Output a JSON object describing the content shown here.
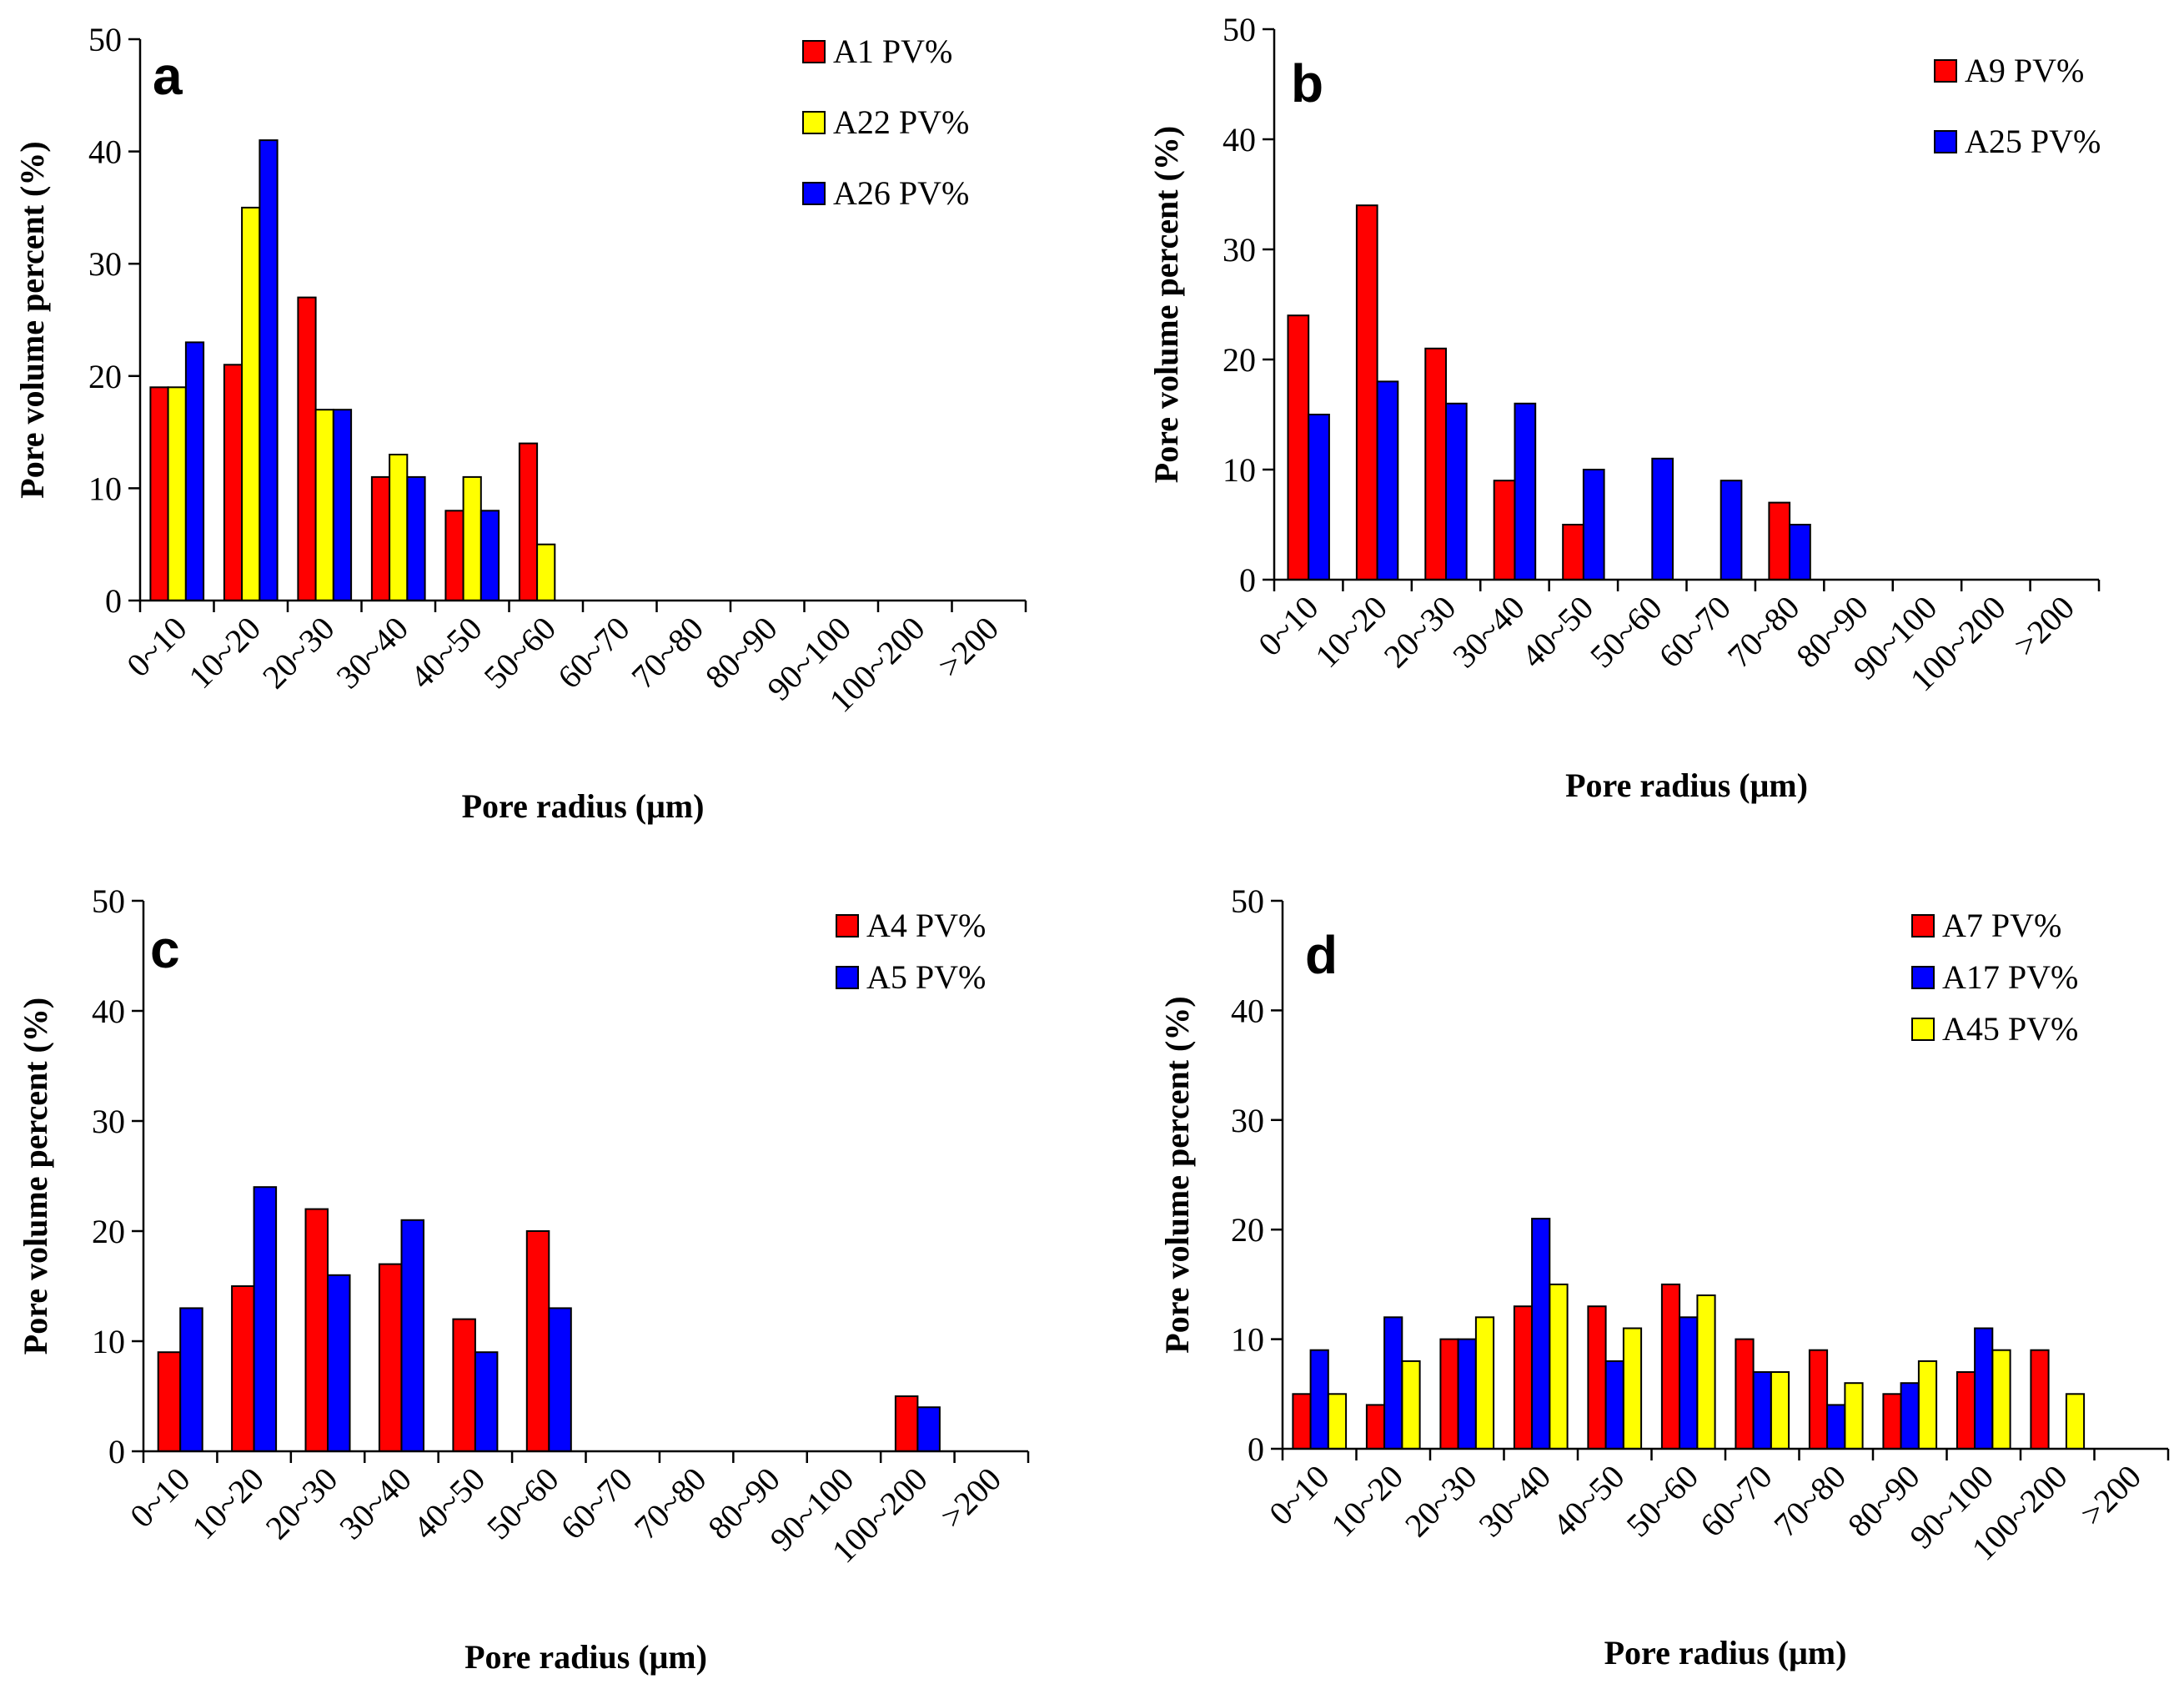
{
  "figure": {
    "description": "Pore volume percent distributions by pore radius"
  },
  "colors": {
    "red": "#ff0000",
    "yellow": "#ffff00",
    "blue": "#0000ff",
    "axis": "#000000"
  },
  "chart_data": [
    {
      "type": "bar",
      "panel": "a",
      "ylabel": "Pore volume percent (%)",
      "xlabel": "Pore radius  (μm)",
      "ylim": [
        0,
        50
      ],
      "yticks": [
        "0",
        "10",
        "20",
        "30",
        "40",
        "50"
      ],
      "categories": [
        "0~10",
        "10~20",
        "20~30",
        "30~40",
        "40~50",
        "50~60",
        "60~70",
        "70~80",
        "80~90",
        "90~100",
        "100~200",
        ">200"
      ],
      "series": [
        {
          "name": "A1 PV%",
          "color": "#ff0000",
          "values": [
            19,
            21,
            27,
            11,
            8,
            14,
            0,
            0,
            0,
            0,
            0,
            0
          ]
        },
        {
          "name": "A22 PV%",
          "color": "#ffff00",
          "values": [
            19,
            35,
            17,
            13,
            11,
            5,
            0,
            0,
            0,
            0,
            0,
            0
          ]
        },
        {
          "name": "A26 PV%",
          "color": "#0000ff",
          "values": [
            23,
            41,
            17,
            11,
            8,
            0,
            0,
            0,
            0,
            0,
            0,
            0
          ]
        }
      ],
      "legend": "top-right"
    },
    {
      "type": "bar",
      "panel": "b",
      "ylabel": "Pore volume percent (%)",
      "xlabel": "Pore radius  (μm)",
      "ylim": [
        0,
        50
      ],
      "yticks": [
        "0",
        "10",
        "20",
        "30",
        "40",
        "50"
      ],
      "categories": [
        "0~10",
        "10~20",
        "20~30",
        "30~40",
        "40~50",
        "50~60",
        "60~70",
        "70~80",
        "80~90",
        "90~100",
        "100~200",
        ">200"
      ],
      "series": [
        {
          "name": "A9 PV%",
          "color": "#ff0000",
          "values": [
            24,
            34,
            21,
            9,
            5,
            0,
            0,
            7,
            0,
            0,
            0,
            0
          ]
        },
        {
          "name": "A25 PV%",
          "color": "#0000ff",
          "values": [
            15,
            18,
            16,
            16,
            10,
            11,
            9,
            5,
            0,
            0,
            0,
            0
          ]
        }
      ],
      "legend": "top-right"
    },
    {
      "type": "bar",
      "panel": "c",
      "ylabel": "Pore volume percent (%)",
      "xlabel": "Pore radius  (μm)",
      "ylim": [
        0,
        50
      ],
      "yticks": [
        "0",
        "10",
        "20",
        "30",
        "40",
        "50"
      ],
      "categories": [
        "0~10",
        "10~20",
        "20~30",
        "30~40",
        "40~50",
        "50~60",
        "60~70",
        "70~80",
        "80~90",
        "90~100",
        "100~200",
        ">200"
      ],
      "series": [
        {
          "name": "A4 PV%",
          "color": "#ff0000",
          "values": [
            9,
            15,
            22,
            17,
            12,
            20,
            0,
            0,
            0,
            0,
            5,
            0
          ]
        },
        {
          "name": "A5 PV%",
          "color": "#0000ff",
          "values": [
            13,
            24,
            16,
            21,
            9,
            13,
            0,
            0,
            0,
            0,
            4,
            0
          ]
        }
      ],
      "legend": "top-right"
    },
    {
      "type": "bar",
      "panel": "d",
      "ylabel": "Pore volume percent (%)",
      "xlabel": "Pore radius  (μm)",
      "ylim": [
        0,
        50
      ],
      "yticks": [
        "0",
        "10",
        "20",
        "30",
        "40",
        "50"
      ],
      "categories": [
        "0~10",
        "10~20",
        "20~30",
        "30~40",
        "40~50",
        "50~60",
        "60~70",
        "70~80",
        "80~90",
        "90~100",
        "100~200",
        ">200"
      ],
      "series": [
        {
          "name": "A7 PV%",
          "color": "#ff0000",
          "values": [
            5,
            4,
            10,
            13,
            13,
            15,
            10,
            9,
            5,
            7,
            9,
            0
          ]
        },
        {
          "name": "A17 PV%",
          "color": "#0000ff",
          "values": [
            9,
            12,
            10,
            21,
            8,
            12,
            7,
            4,
            6,
            11,
            0,
            0
          ]
        },
        {
          "name": "A45 PV%",
          "color": "#ffff00",
          "values": [
            5,
            8,
            12,
            15,
            11,
            14,
            7,
            6,
            8,
            9,
            5,
            0
          ]
        }
      ],
      "legend": "top-right"
    }
  ]
}
